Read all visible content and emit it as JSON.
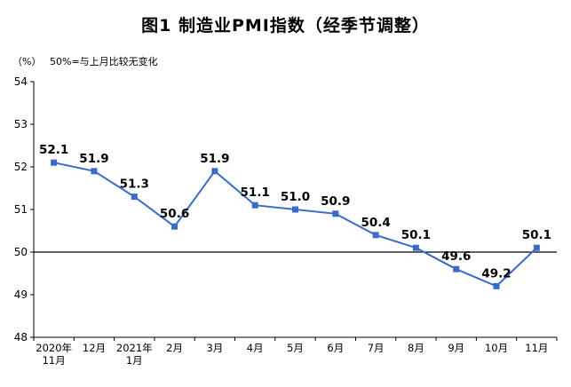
{
  "page": {
    "title": "图1 制造业PMI指数（经季节调整）",
    "unit_label": "（%）",
    "note": "50%=与上月比较无变化"
  },
  "chart_data": {
    "type": "line",
    "title": "图1 制造业PMI指数（经季节调整）",
    "xlabel": "",
    "ylabel": "(%)",
    "categories": [
      [
        "2020年",
        "11月"
      ],
      [
        "12月"
      ],
      [
        "2021年",
        "1月"
      ],
      [
        "2月"
      ],
      [
        "3月"
      ],
      [
        "4月"
      ],
      [
        "5月"
      ],
      [
        "6月"
      ],
      [
        "7月"
      ],
      [
        "8月"
      ],
      [
        "9月"
      ],
      [
        "10月"
      ],
      [
        "11月"
      ]
    ],
    "series": [
      {
        "name": "制造业PMI指数",
        "values": [
          52.1,
          51.9,
          51.3,
          50.6,
          51.9,
          51.1,
          51.0,
          50.9,
          50.4,
          50.1,
          49.6,
          49.2,
          50.1
        ]
      }
    ],
    "ylim": [
      48,
      54
    ],
    "yticks": [
      48,
      49,
      50,
      51,
      52,
      53,
      54
    ],
    "reference_line": 50,
    "grid": false,
    "legend_position": "none",
    "data_labels": true,
    "marker": "square",
    "colors": {
      "line": "#3A6BC8",
      "marker": "#3A6BC8",
      "axis": "#000000",
      "reference_line": "#000000",
      "label": "#000000",
      "tick_label": "#000000"
    }
  }
}
